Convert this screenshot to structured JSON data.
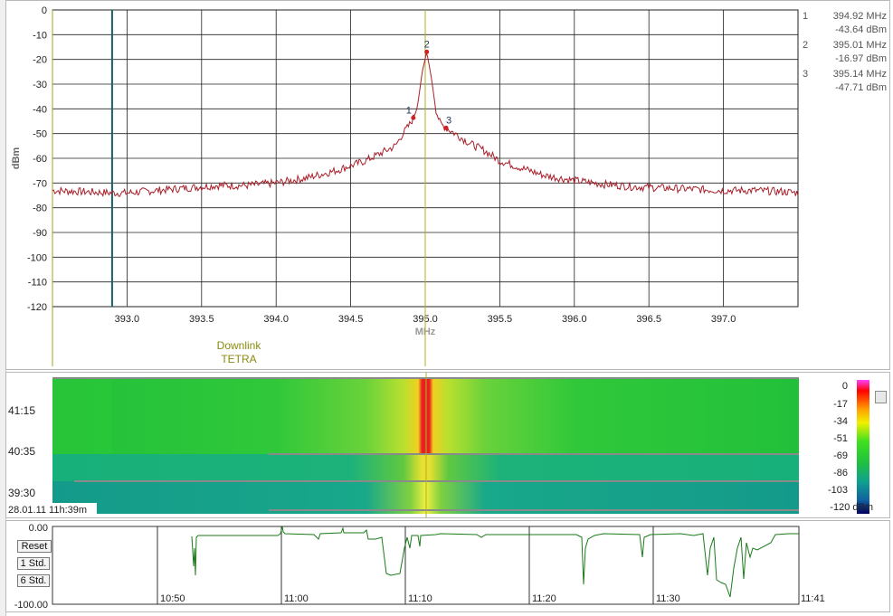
{
  "chart_data": {
    "type": "line",
    "xlabel": "MHz",
    "ylabel": "dBm",
    "xlim": [
      392.5,
      397.5
    ],
    "ylim": [
      -120,
      0
    ],
    "y_ticks": [
      "0",
      "-10",
      "-20",
      "-30",
      "-40",
      "-50",
      "-60",
      "-70",
      "-80",
      "-90",
      "-100",
      "-110",
      "-120"
    ],
    "x_ticks": [
      "393.0",
      "393.5",
      "394.0",
      "394.5",
      "395.0",
      "395.5",
      "396.0",
      "396.5",
      "397.0"
    ],
    "y_tick_values": [
      0,
      -10,
      -20,
      -30,
      -40,
      -50,
      -60,
      -70,
      -80,
      -90,
      -100,
      -110,
      -120
    ],
    "x_tick_values": [
      393.0,
      393.5,
      394.0,
      394.5,
      395.0,
      395.5,
      396.0,
      396.5,
      397.0
    ],
    "trace_color": "#a8202a",
    "series": [
      {
        "x": [
          392.5,
          392.7,
          392.9,
          393.0,
          393.2,
          393.4,
          393.6,
          393.8,
          394.0,
          394.2,
          394.4,
          394.5,
          394.6,
          394.7,
          394.8,
          394.85,
          394.9,
          394.92,
          394.95,
          394.98,
          395.01,
          395.04,
          395.07,
          395.1,
          395.14,
          395.2,
          395.3,
          395.4,
          395.5,
          395.6,
          395.7,
          395.8,
          395.9,
          396.0,
          396.2,
          396.4,
          396.6,
          396.8,
          397.0,
          397.2,
          397.4,
          397.5
        ],
        "y": [
          -73,
          -73.5,
          -74,
          -74,
          -73,
          -72,
          -71,
          -71,
          -70,
          -68,
          -65,
          -63,
          -61,
          -58,
          -55,
          -50,
          -46,
          -43.64,
          -38,
          -25,
          -16.97,
          -27,
          -40,
          -46,
          -47.71,
          -50,
          -54,
          -57,
          -61,
          -63,
          -65,
          -67,
          -68,
          -69,
          -70.5,
          -71.5,
          -72,
          -72.5,
          -73,
          -73,
          -73.5,
          -74
        ]
      }
    ],
    "markers": [
      {
        "id": "1",
        "x": 394.92,
        "y": -43.64
      },
      {
        "id": "2",
        "x": 395.01,
        "y": -16.97
      },
      {
        "id": "3",
        "x": 395.14,
        "y": -47.71
      }
    ],
    "legend": [
      {
        "num": "1",
        "freq": "394.92 MHz",
        "level": "-43.64 dBm"
      },
      {
        "num": "2",
        "freq": "395.01 MHz",
        "level": "-16.97 dBm"
      },
      {
        "num": "3",
        "freq": "395.14 MHz",
        "level": "-47.71 dBm"
      }
    ],
    "band_label": {
      "line1": "Downlink",
      "line2": "TETRA",
      "x": 392.5
    },
    "center_x": 395.0,
    "teal_line_x": 392.9
  },
  "waterfall": {
    "time_labels": [
      "41:15",
      "40:35",
      "39:30"
    ],
    "date_label": "28.01.11 11h:39m",
    "scale_labels": [
      "0",
      "-17",
      "-34",
      "-51",
      "-69",
      "-86",
      "-103",
      "-120 dBm"
    ]
  },
  "history": {
    "y_labels": [
      "0.00",
      "-100.00"
    ],
    "buttons": {
      "reset": "Reset",
      "std1": "1 Std.",
      "std6": "6 Std."
    },
    "time_labels": [
      "10:50",
      "11:00",
      "11:10",
      "11:20",
      "11:30",
      "11:41"
    ],
    "trace_color": "#1a7a1a"
  }
}
